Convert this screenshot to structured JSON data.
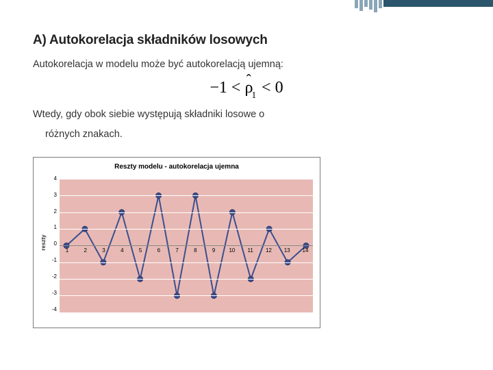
{
  "section": {
    "title": "A) Autokorelacja składników losowych",
    "para1": "Autokorelacja w modelu może być autokorelacją ujemną:",
    "formula_html": "−1 < ρ̂₁ < 0",
    "para2a": "Wtedy, gdy obok siebie występują składniki losowe o",
    "para2b": "różnych znakach."
  },
  "chart": {
    "type": "line",
    "title": "Reszty modelu - autokorelacja ujemna",
    "ylabel": "reszty",
    "ylim": [
      -4,
      4
    ],
    "ytick_step": 1,
    "x_values": [
      1,
      2,
      3,
      4,
      5,
      6,
      7,
      8,
      9,
      10,
      11,
      12,
      13,
      14
    ],
    "y_values": [
      0,
      1,
      -1,
      2,
      -2,
      3,
      -3,
      3,
      -3,
      2,
      -2,
      1,
      -1,
      0
    ],
    "plot_bg": "#e8b9b4",
    "grid_color": "#ffffff",
    "line_color": "#3b4e8f",
    "line_width": 2,
    "marker_fill": "#3b4e8f",
    "marker_border": "#2a3766",
    "marker_radius": 4,
    "chart_border": "#7a7a7a",
    "title_fontsize": 10,
    "label_fontsize": 8,
    "zero_line_thick": true
  },
  "accent": {
    "bar_color": "#2b556a",
    "deco_color": "#8aa6b8"
  }
}
